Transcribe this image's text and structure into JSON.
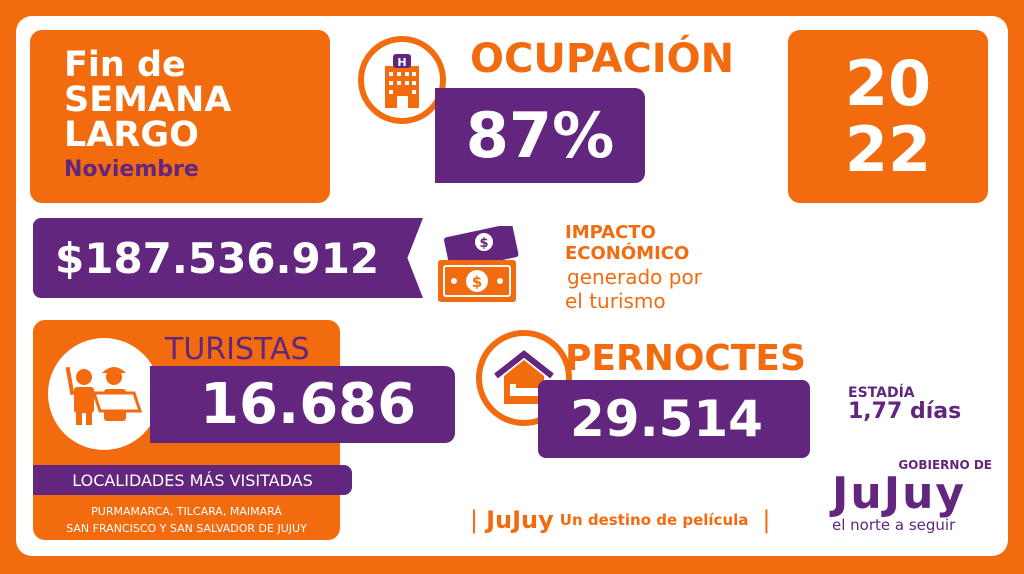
{
  "title_box": {
    "line1": "Fin de",
    "line2": "SEMANA",
    "line3": "LARGO",
    "month": "Noviembre"
  },
  "ocupacion": {
    "label": "OCUPACIÓN",
    "value": "87%",
    "icon": "hotel-icon"
  },
  "year": {
    "line1": "20",
    "line2": "22"
  },
  "impacto": {
    "value": "$187.536.912",
    "title1": "IMPACTO",
    "title2": "ECONÓMICO",
    "sub1": "generado por",
    "sub2": "el turismo",
    "icon": "money-icon"
  },
  "turistas": {
    "label": "TURISTAS",
    "value": "16.686",
    "icon": "tourists-icon",
    "localidades_label": "LOCALIDADES MÁS VISITADAS",
    "localidades_line1": "PURMAMARCA, TILCARA, MAIMARÁ",
    "localidades_line2": "SAN FRANCISCO Y SAN SALVADOR DE JUJUY"
  },
  "pernoctes": {
    "label": "PERNOCTES",
    "value": "29.514",
    "icon": "house-bed-icon"
  },
  "estadia": {
    "label": "ESTADÍA",
    "value": "1,77 días"
  },
  "tagline": {
    "brand": "JuJuy",
    "text": "Un destino de película"
  },
  "logo": {
    "top": "GOBIERNO DE",
    "brand": "JuJuy",
    "slogan": "el norte a seguir"
  },
  "colors": {
    "orange": "#f26b0f",
    "purple": "#62267e"
  }
}
